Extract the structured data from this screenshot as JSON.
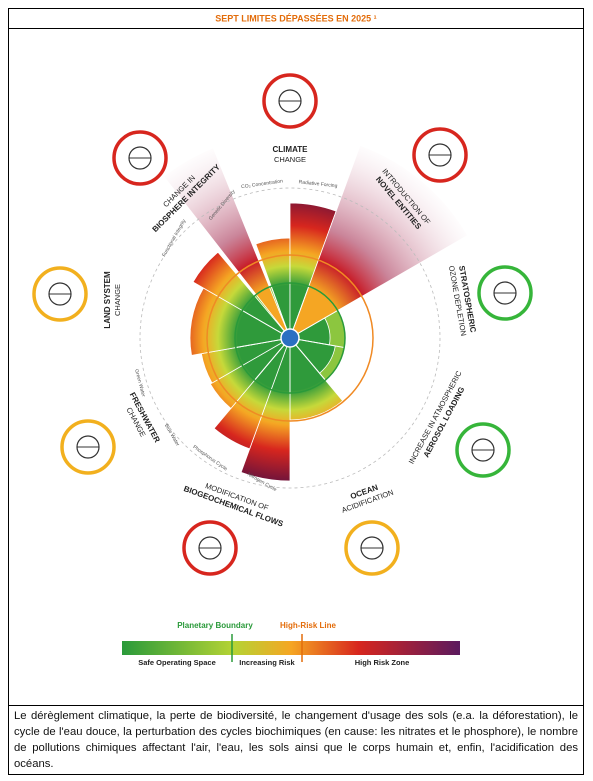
{
  "header": {
    "title": "SEPT LIMITES DÉPASSÉES EN 2025 ¹"
  },
  "boundaries": [
    {
      "lines": [
        "CLIMATE",
        "CHANGE"
      ],
      "sub": [
        "CO₂ Concentration",
        "Radiative Forcing"
      ]
    },
    {
      "lines": [
        "INTRODUCTION OF",
        "NOVEL ENTITIES"
      ]
    },
    {
      "lines": [
        "STRATOSPHERIC",
        "OZONE DEPLETION"
      ]
    },
    {
      "lines": [
        "INCREASE IN ATMOSPHERIC",
        "AEROSOL LOADING"
      ]
    },
    {
      "lines": [
        "OCEAN",
        "ACIDIFICATION"
      ]
    },
    {
      "lines": [
        "MODIFICATION OF",
        "BIOGEOCHEMICAL FLOWS"
      ],
      "sub": [
        "Nitrogen Cycle",
        "Phosphorus Cycle"
      ]
    },
    {
      "lines": [
        "FRESHWATER",
        "CHANGE"
      ],
      "sub": [
        "Blue Water",
        "Green Water"
      ]
    },
    {
      "lines": [
        "LAND SYSTEM",
        "CHANGE"
      ]
    },
    {
      "lines": [
        "CHANGE IN",
        "BIOSPHERE INTEGRITY"
      ],
      "sub": [
        "Functional Integrity",
        "Genetic Diversity"
      ]
    }
  ],
  "legend": {
    "boundary": "Planetary Boundary",
    "high_risk": "High-Risk Line",
    "zones": [
      "Safe Operating Space",
      "Increasing Risk",
      "High Risk Zone"
    ]
  },
  "caption": "Le dérèglement climatique,  la perte de biodiversité,  le changement d'usage des sols (e.a. la déforestation),  le cycle de l'eau douce, la perturbation des cycles biochimiques (en cause: les nitrates et le phosphore), le nombre de pollutions chimiques affectant l'air, l'eau, les sols ainsi que le corps humain et, enfin, l'acidification des océans."
}
